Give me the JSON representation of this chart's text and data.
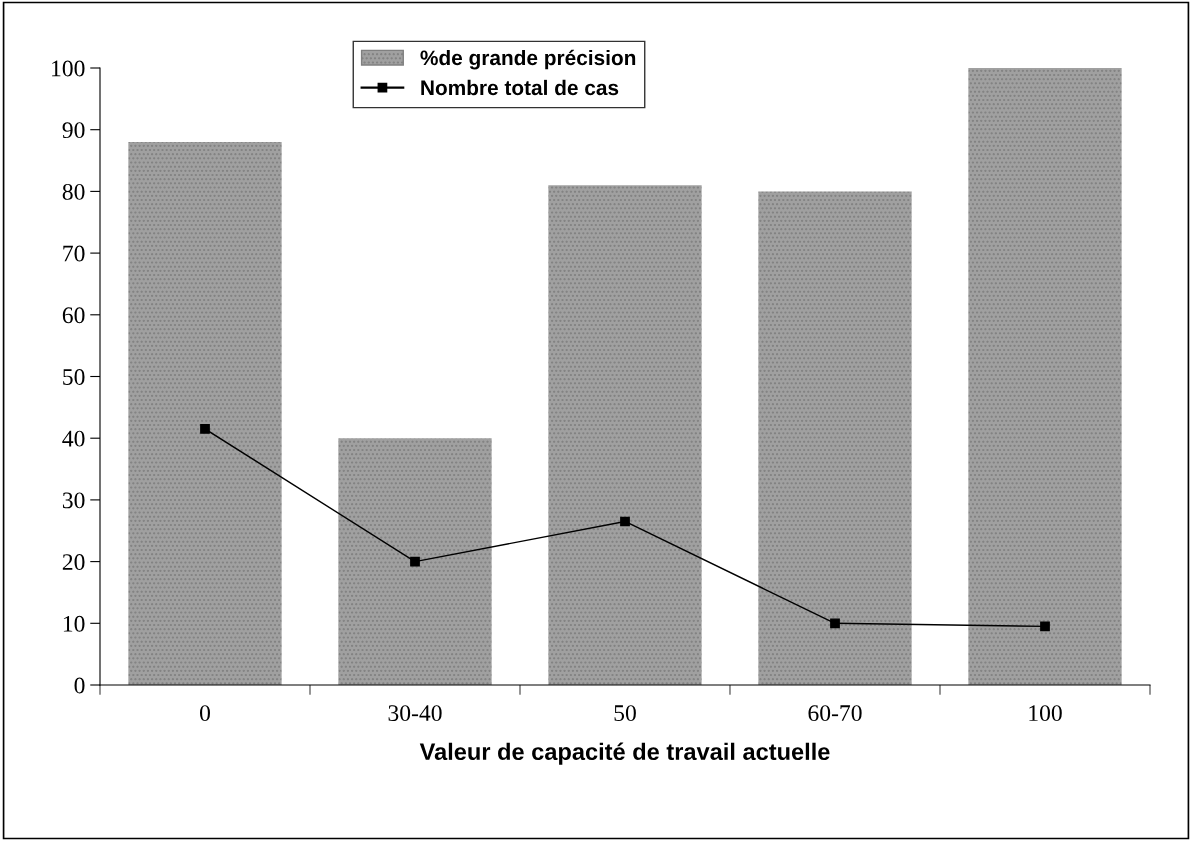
{
  "chart_data": {
    "type": "bar",
    "xlabel": "Valeur de capacité de travail actuelle",
    "categories": [
      "0",
      "30-40",
      "50",
      "60-70",
      "100"
    ],
    "series": [
      {
        "name": "%de grande précision",
        "color": "#a0a0a0",
        "values": [
          88,
          40,
          81,
          80,
          100
        ]
      },
      {
        "name": "Nombre total de cas",
        "type": "line",
        "color": "#000000",
        "values": [
          41.5,
          20,
          26.5,
          10,
          9.5
        ]
      }
    ],
    "ylim": [
      0,
      100
    ],
    "yticks": [
      0,
      10,
      20,
      30,
      40,
      50,
      60,
      70,
      80,
      90,
      100
    ],
    "grid": false,
    "legend": "top",
    "marker": "square"
  }
}
